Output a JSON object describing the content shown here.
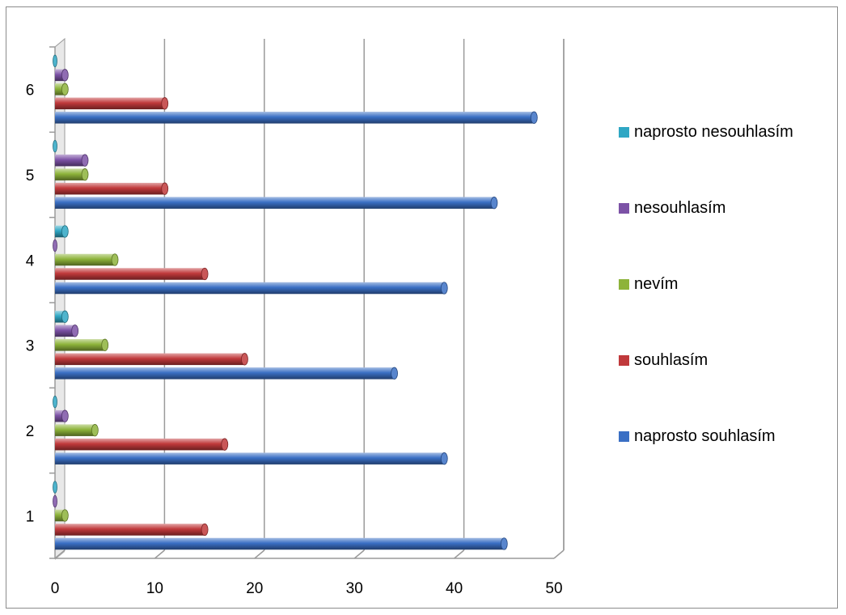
{
  "chart_data": {
    "type": "bar",
    "orientation": "horizontal",
    "style": "3d-cylinder",
    "categories": [
      "1",
      "2",
      "3",
      "4",
      "5",
      "6"
    ],
    "series": [
      {
        "name": "naprosto souhlasím",
        "color": "#3a6fc4",
        "values": [
          45,
          39,
          34,
          39,
          44,
          48
        ]
      },
      {
        "name": "souhlasím",
        "color": "#c0393b",
        "values": [
          15,
          17,
          19,
          15,
          11,
          11
        ]
      },
      {
        "name": "nevím",
        "color": "#8db33a",
        "values": [
          1,
          4,
          5,
          6,
          3,
          1
        ]
      },
      {
        "name": "nesouhlasím",
        "color": "#7c52a6",
        "values": [
          0,
          1,
          2,
          0,
          3,
          1
        ]
      },
      {
        "name": "naprosto nesouhlasím",
        "color": "#2fa7c4",
        "values": [
          0,
          0,
          1,
          1,
          0,
          0
        ]
      }
    ],
    "xlim": [
      0,
      50
    ],
    "x_ticks": [
      "0",
      "10",
      "20",
      "30",
      "40",
      "50"
    ],
    "title": "",
    "xlabel": "",
    "ylabel": "",
    "grid": "vertical",
    "legend_position": "right",
    "legend_order": [
      "naprosto nesouhlasím",
      "nesouhlasím",
      "nevím",
      "souhlasím",
      "naprosto souhlasím"
    ]
  }
}
